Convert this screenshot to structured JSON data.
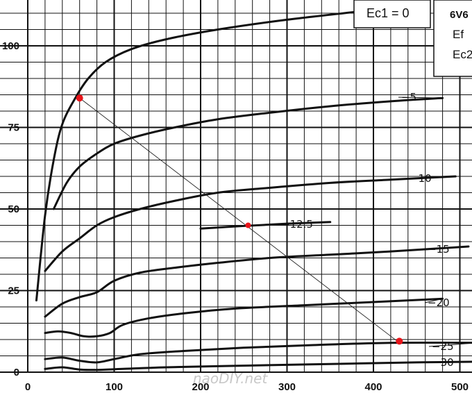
{
  "chart_data": {
    "type": "line",
    "title": "",
    "xlabel": "",
    "ylabel": "",
    "xlim": [
      0,
      500
    ],
    "ylim": [
      0,
      110
    ],
    "grid": true,
    "x_ticks": [
      "0",
      "100",
      "200",
      "300",
      "400",
      "500"
    ],
    "y_ticks": [
      "0",
      "25",
      "50",
      "75",
      "100"
    ],
    "tube_label": "6V6",
    "box_lines": [
      "Ef",
      "Ec2"
    ],
    "grid_bias_label": "Ec1 = 0",
    "series": [
      {
        "label": "Ec1 = 0",
        "x": [
          10,
          20,
          30,
          40,
          55,
          70,
          90,
          120,
          160,
          220,
          300,
          400
        ],
        "y": [
          22,
          48,
          65,
          76,
          84,
          90,
          95,
          99,
          102,
          105,
          108,
          111
        ]
      },
      {
        "label": "−5",
        "x": [
          30,
          45,
          60,
          80,
          100,
          130,
          170,
          220,
          280,
          350,
          420,
          480
        ],
        "y": [
          50,
          58,
          63,
          67,
          70,
          72.5,
          75,
          77.5,
          79.5,
          81.5,
          83,
          84
        ]
      },
      {
        "label": "−10",
        "x": [
          20,
          40,
          60,
          80,
          100,
          130,
          170,
          220,
          280,
          350,
          420,
          495
        ],
        "y": [
          31,
          37,
          41,
          45,
          47.5,
          50,
          52.5,
          55,
          56.5,
          58,
          59,
          60
        ]
      },
      {
        "label": "−12.5",
        "x": [
          200,
          250,
          300,
          350
        ],
        "y": [
          44,
          44.8,
          45.5,
          46
        ]
      },
      {
        "label": "−15",
        "x": [
          20,
          40,
          60,
          80,
          100,
          130,
          170,
          220,
          280,
          350,
          420,
          510
        ],
        "y": [
          17,
          21,
          23,
          24.5,
          28,
          30.5,
          32,
          33.5,
          35,
          36,
          37,
          38.5
        ]
      },
      {
        "label": "−20",
        "x": [
          20,
          35,
          50,
          65,
          80,
          95,
          110,
          140,
          180,
          240,
          320,
          400,
          480
        ],
        "y": [
          12,
          12.5,
          12,
          11,
          11,
          12,
          14.5,
          16.5,
          18,
          19.5,
          20.5,
          21.5,
          22.5
        ]
      },
      {
        "label": "−25",
        "x": [
          20,
          40,
          60,
          80,
          100,
          130,
          180,
          250,
          330,
          420,
          520
        ],
        "y": [
          4,
          4.5,
          3.5,
          3,
          4,
          5.5,
          6.5,
          7.5,
          8.3,
          9,
          9
        ]
      },
      {
        "label": "−30",
        "x": [
          20,
          40,
          60,
          80,
          110,
          160,
          250,
          350,
          450,
          520
        ],
        "y": [
          1,
          1.5,
          0.8,
          0.7,
          1,
          1.5,
          2,
          2.5,
          3,
          3.2
        ]
      }
    ],
    "load_line": {
      "x": [
        60,
        430
      ],
      "y": [
        84,
        9
      ]
    },
    "operating_points": [
      {
        "x": 60,
        "y": 84
      },
      {
        "x": 255,
        "y": 45
      },
      {
        "x": 430,
        "y": 9.5
      }
    ],
    "colors": {
      "curve": "#111111",
      "grid": "#111111",
      "point": "#e8141a"
    }
  },
  "watermark": "naoDIY.net"
}
